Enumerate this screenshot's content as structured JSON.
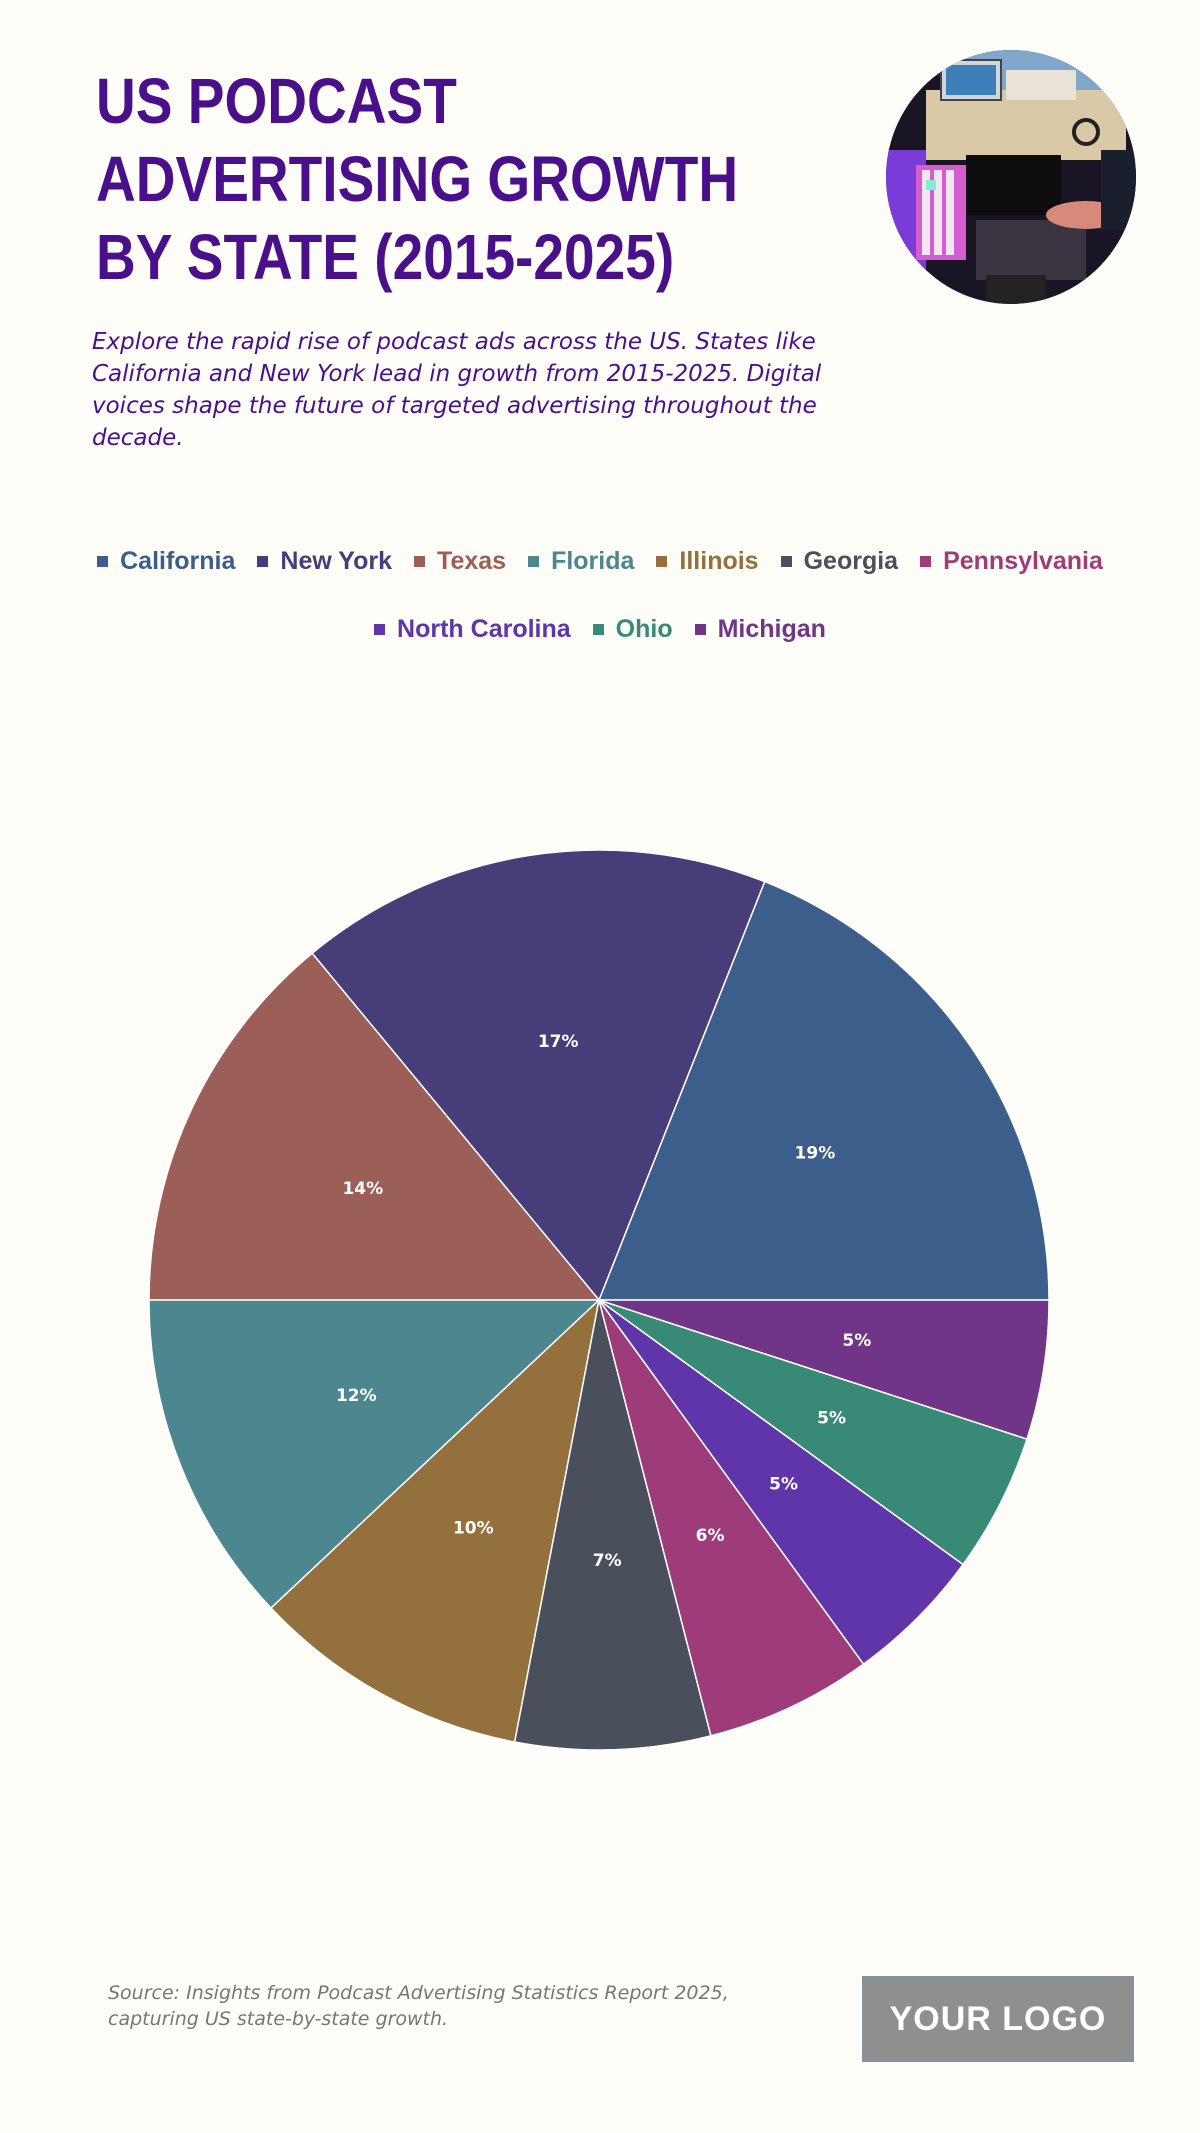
{
  "header": {
    "title": "US PODCAST ADVERTISING GROWTH BY STATE (2015-2025)",
    "subtitle": "Explore the rapid rise of podcast ads across the US. States like California and New York lead in growth from 2015-2025. Digital voices shape the future of targeted advertising throughout the decade."
  },
  "footer": {
    "source": "Source: Insights from Podcast Advertising Statistics Report 2025, capturing US state-by-state growth.",
    "logo": "YOUR LOGO"
  },
  "chart_data": {
    "type": "pie",
    "legend_position": "top",
    "start_angle": "3 o'clock, counterclockwise",
    "slices": [
      {
        "label": "California",
        "value": 19,
        "display": "19%",
        "color": "#3c5e8b"
      },
      {
        "label": "New York",
        "value": 17,
        "display": "17%",
        "color": "#473e79"
      },
      {
        "label": "Texas",
        "value": 14,
        "display": "14%",
        "color": "#9b5f57"
      },
      {
        "label": "Florida",
        "value": 12,
        "display": "12%",
        "color": "#4c8790"
      },
      {
        "label": "Illinois",
        "value": 10,
        "display": "10%",
        "color": "#94703d"
      },
      {
        "label": "Georgia",
        "value": 7,
        "display": "7%",
        "color": "#4a4f5c"
      },
      {
        "label": "Pennsylvania",
        "value": 6,
        "display": "6%",
        "color": "#9e3c7a"
      },
      {
        "label": "North Carolina",
        "value": 5,
        "display": "5%",
        "color": "#5f35a9"
      },
      {
        "label": "Ohio",
        "value": 5,
        "display": "5%",
        "color": "#388a76"
      },
      {
        "label": "Michigan",
        "value": 5,
        "display": "5%",
        "color": "#703586"
      }
    ]
  }
}
